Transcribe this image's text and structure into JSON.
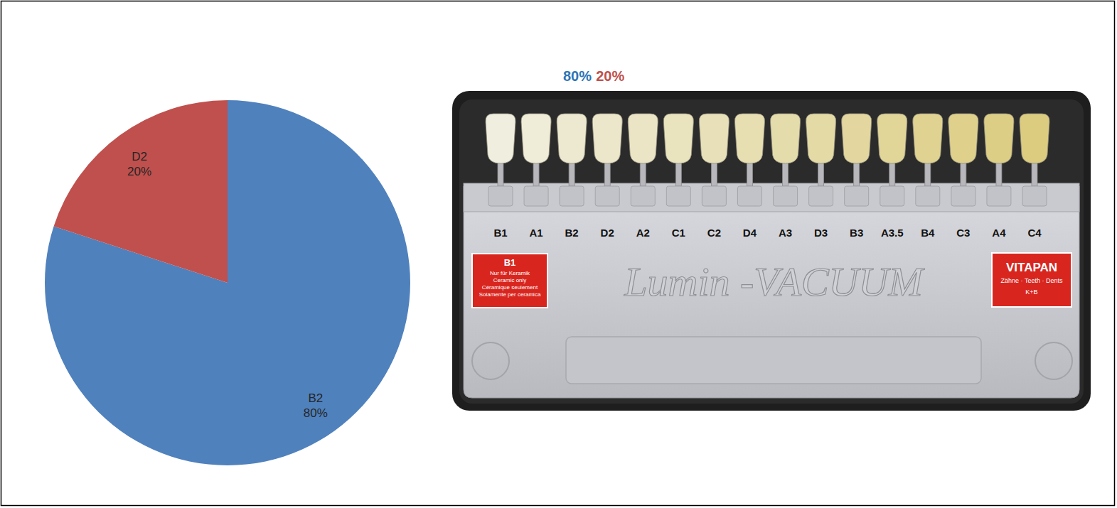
{
  "chart_data": {
    "type": "pie",
    "categories": [
      "B2",
      "D2"
    ],
    "values": [
      80,
      20
    ],
    "value_labels": [
      "80%",
      "20%"
    ],
    "colors": [
      "#4f81bd",
      "#c0504d"
    ],
    "data_labels": true
  },
  "photo": {
    "caption_labels": [
      {
        "text": "80%",
        "color": "#2e75b6"
      },
      {
        "text": "20%",
        "color": "#c0504d"
      }
    ],
    "shade_tabs": [
      "B1",
      "A1",
      "B2",
      "D2",
      "A2",
      "C1",
      "C2",
      "D4",
      "A3",
      "D3",
      "B3",
      "A3.5",
      "B4",
      "C3",
      "A4",
      "C4"
    ],
    "brand": "Lumin -VACUUM",
    "left_sticker": {
      "title": "B1",
      "lines": [
        "Nur für Keramik",
        "Ceramic only",
        "Céramique seulement",
        "Solamente per ceramica"
      ]
    },
    "right_sticker": {
      "title": "VITAPAN",
      "lines": [
        "Zähne · Teeth · Dents",
        "K+B"
      ]
    }
  }
}
